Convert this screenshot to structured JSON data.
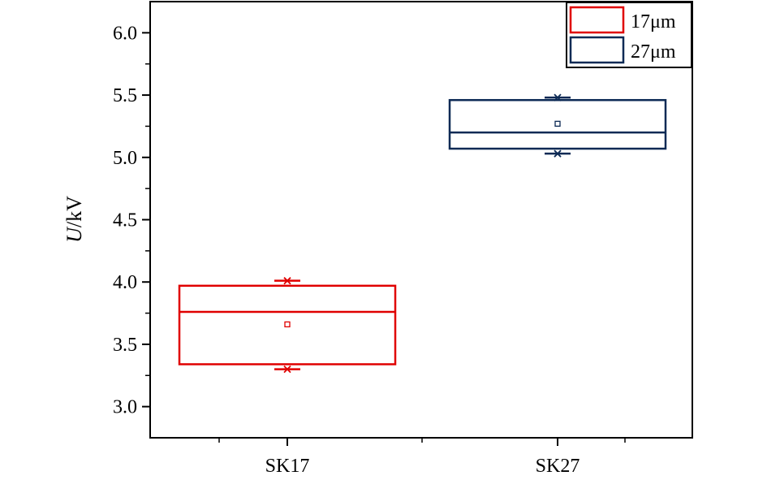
{
  "chart_data": {
    "type": "box",
    "categories": [
      "SK17",
      "SK27"
    ],
    "series": [
      {
        "name": "17μm",
        "category": "SK17",
        "color": "#e00000",
        "q1": 3.34,
        "median": 3.76,
        "q3": 3.97,
        "mean": 3.66,
        "min": 3.3,
        "max": 4.01
      },
      {
        "name": "27μm",
        "category": "SK27",
        "color": "#0d2a55",
        "q1": 5.07,
        "median": 5.2,
        "q3": 5.46,
        "mean": 5.27,
        "min": 5.03,
        "max": 5.48
      }
    ],
    "ylabel_italic": "U",
    "ylabel_rest": "/kV",
    "ylim": [
      2.75,
      6.25
    ],
    "yticks": [
      "3.0",
      "3.5",
      "4.0",
      "4.5",
      "5.0",
      "5.5",
      "6.0"
    ],
    "legend_position": "top-right",
    "grid": false
  }
}
